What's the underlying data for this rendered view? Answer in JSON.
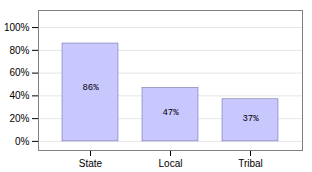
{
  "chart_data": {
    "type": "bar",
    "categories": [
      "State",
      "Local",
      "Tribal"
    ],
    "values": [
      86,
      47,
      37
    ],
    "value_labels": [
      "86%",
      "47%",
      "37%"
    ],
    "data_labels": true,
    "color": "#c8c8ff",
    "ylim": [
      -8,
      115
    ],
    "yticks": [
      {
        "value": 0,
        "label": "0%"
      },
      {
        "value": 20,
        "label": "20%"
      },
      {
        "value": 40,
        "label": "40%"
      },
      {
        "value": 60,
        "label": "60%"
      },
      {
        "value": 80,
        "label": "80%"
      },
      {
        "value": 100,
        "label": "100%"
      }
    ],
    "grid": true
  }
}
